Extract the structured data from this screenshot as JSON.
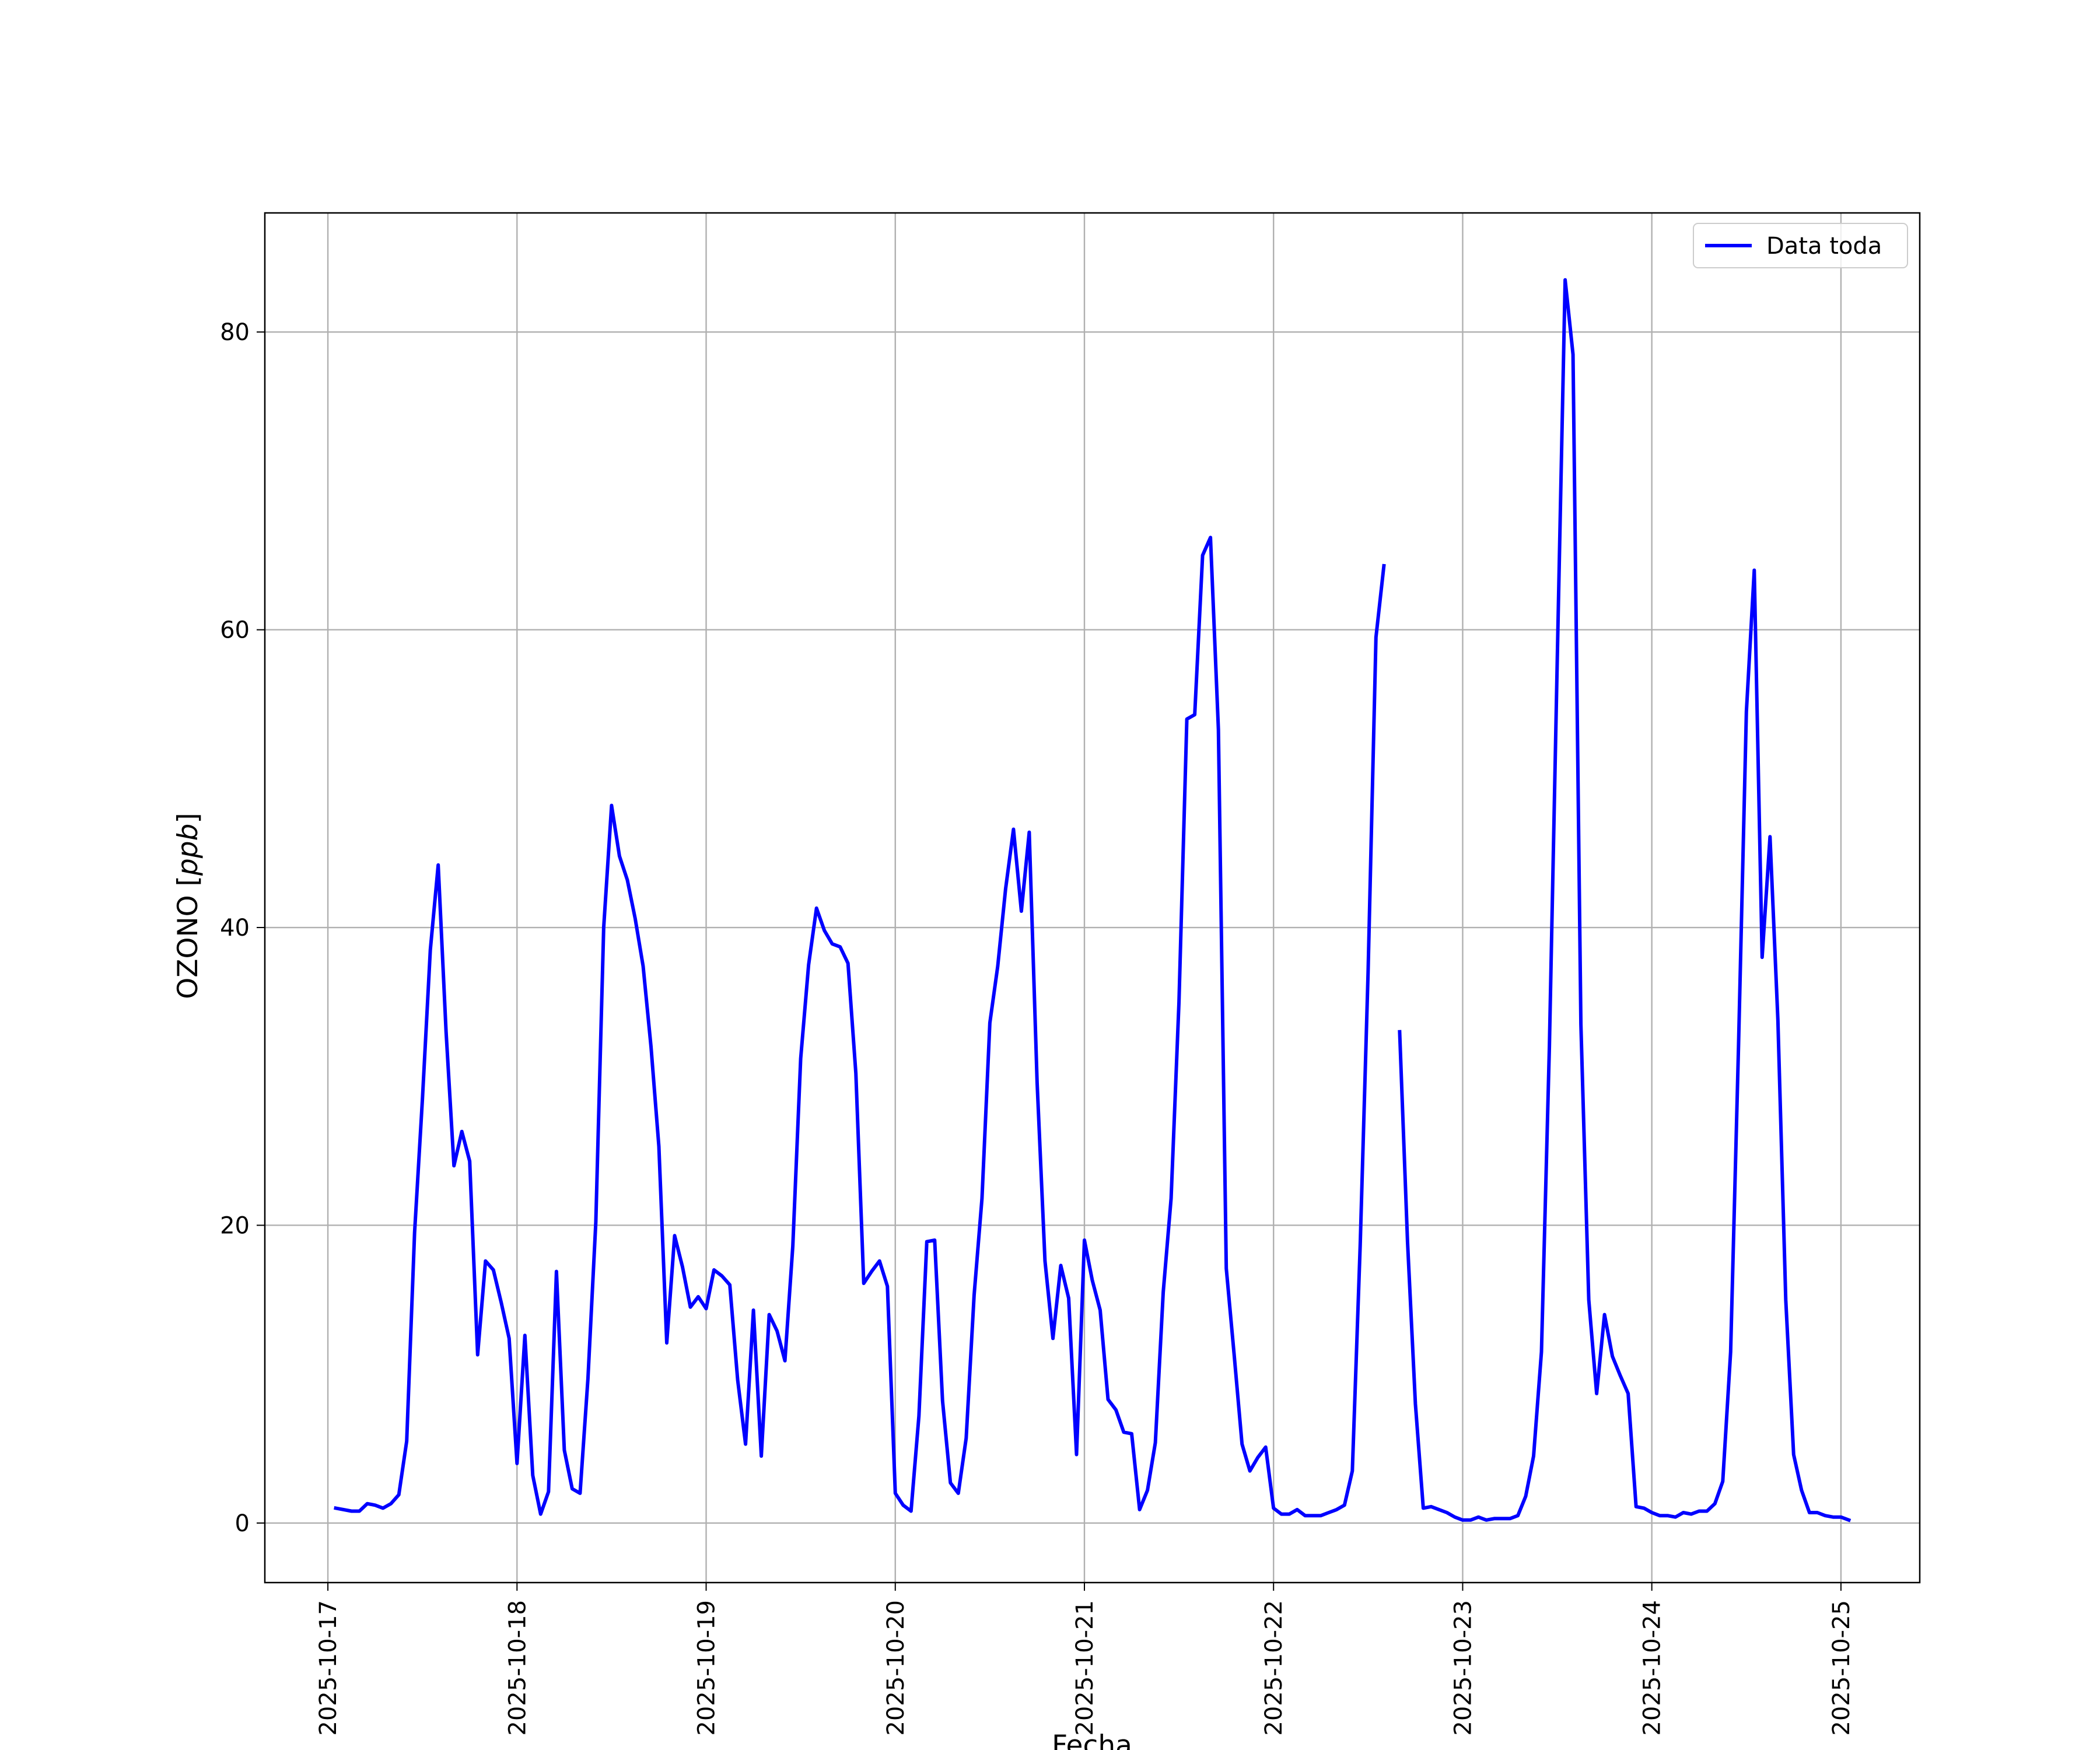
{
  "chart_data": {
    "type": "line",
    "xlabel": "Fecha",
    "ylabel_main": "OZONO [",
    "ylabel_unit": "ppb",
    "ylabel_close": "]",
    "x_tick_labels": [
      "2025-10-17",
      "2025-10-18",
      "2025-10-19",
      "2025-10-20",
      "2025-10-21",
      "2025-10-22",
      "2025-10-23",
      "2025-10-24",
      "2025-10-25"
    ],
    "y_ticks": [
      0,
      20,
      40,
      60,
      80
    ],
    "xlim": [
      "2025-10-16T16:00",
      "2025-10-25T10:00"
    ],
    "ylim": [
      -4,
      88
    ],
    "grid": true,
    "legend_position": "top-right",
    "series": [
      {
        "name": "Data toda",
        "color": "#0000ff",
        "segments": [
          [
            [
              "2025-10-17T01:00",
              1.0
            ],
            [
              "2025-10-17T03:00",
              0.8
            ],
            [
              "2025-10-17T04:00",
              0.8
            ],
            [
              "2025-10-17T05:00",
              1.3
            ],
            [
              "2025-10-17T06:00",
              1.2
            ],
            [
              "2025-10-17T07:00",
              1.0
            ],
            [
              "2025-10-17T08:00",
              1.3
            ],
            [
              "2025-10-17T09:00",
              1.9
            ],
            [
              "2025-10-17T10:00",
              5.5
            ],
            [
              "2025-10-17T11:00",
              19.5
            ],
            [
              "2025-10-17T12:00",
              28.5
            ],
            [
              "2025-10-17T13:00",
              38.5
            ],
            [
              "2025-10-17T14:00",
              44.2
            ],
            [
              "2025-10-17T15:00",
              33.0
            ],
            [
              "2025-10-17T16:00",
              24.0
            ],
            [
              "2025-10-17T17:00",
              26.3
            ],
            [
              "2025-10-17T18:00",
              24.3
            ],
            [
              "2025-10-17T19:00",
              11.3
            ],
            [
              "2025-10-17T20:00",
              17.6
            ],
            [
              "2025-10-17T21:00",
              17.0
            ],
            [
              "2025-10-17T22:00",
              14.8
            ],
            [
              "2025-10-17T23:00",
              12.4
            ],
            [
              "2025-10-18T00:00",
              4.0
            ],
            [
              "2025-10-18T01:00",
              12.6
            ],
            [
              "2025-10-18T02:00",
              3.2
            ],
            [
              "2025-10-18T03:00",
              0.6
            ],
            [
              "2025-10-18T04:00",
              2.1
            ],
            [
              "2025-10-18T05:00",
              16.9
            ],
            [
              "2025-10-18T06:00",
              4.9
            ],
            [
              "2025-10-18T07:00",
              2.3
            ],
            [
              "2025-10-18T08:00",
              2.0
            ],
            [
              "2025-10-18T09:00",
              9.7
            ],
            [
              "2025-10-18T10:00",
              20.2
            ],
            [
              "2025-10-18T11:00",
              40.0
            ],
            [
              "2025-10-18T12:00",
              48.2
            ],
            [
              "2025-10-18T13:00",
              44.8
            ],
            [
              "2025-10-18T14:00",
              43.2
            ],
            [
              "2025-10-18T15:00",
              40.6
            ],
            [
              "2025-10-18T16:00",
              37.4
            ],
            [
              "2025-10-18T17:00",
              32.0
            ],
            [
              "2025-10-18T18:00",
              25.3
            ],
            [
              "2025-10-18T19:00",
              12.1
            ],
            [
              "2025-10-18T20:00",
              19.3
            ],
            [
              "2025-10-18T21:00",
              17.2
            ],
            [
              "2025-10-18T22:00",
              14.5
            ],
            [
              "2025-10-18T23:00",
              15.2
            ],
            [
              "2025-10-19T00:00",
              14.4
            ],
            [
              "2025-10-19T01:00",
              17.0
            ],
            [
              "2025-10-19T02:00",
              16.6
            ],
            [
              "2025-10-19T03:00",
              16.0
            ],
            [
              "2025-10-19T04:00",
              9.6
            ],
            [
              "2025-10-19T05:00",
              5.3
            ],
            [
              "2025-10-19T06:00",
              14.3
            ],
            [
              "2025-10-19T07:00",
              4.5
            ],
            [
              "2025-10-19T08:00",
              14.0
            ],
            [
              "2025-10-19T09:00",
              12.9
            ],
            [
              "2025-10-19T10:00",
              10.9
            ],
            [
              "2025-10-19T11:00",
              18.6
            ],
            [
              "2025-10-19T12:00",
              31.2
            ],
            [
              "2025-10-19T13:00",
              37.5
            ],
            [
              "2025-10-19T14:00",
              41.3
            ],
            [
              "2025-10-19T15:00",
              39.8
            ],
            [
              "2025-10-19T16:00",
              38.9
            ],
            [
              "2025-10-19T17:00",
              38.7
            ],
            [
              "2025-10-19T18:00",
              37.6
            ],
            [
              "2025-10-19T19:00",
              30.2
            ],
            [
              "2025-10-19T20:00",
              16.1
            ],
            [
              "2025-10-19T21:00",
              16.9
            ],
            [
              "2025-10-19T22:00",
              17.6
            ],
            [
              "2025-10-19T23:00",
              15.9
            ],
            [
              "2025-10-20T00:00",
              2.0
            ],
            [
              "2025-10-20T01:00",
              1.2
            ],
            [
              "2025-10-20T02:00",
              0.8
            ],
            [
              "2025-10-20T03:00",
              7.2
            ],
            [
              "2025-10-20T04:00",
              18.9
            ],
            [
              "2025-10-20T05:00",
              19.0
            ],
            [
              "2025-10-20T06:00",
              8.2
            ],
            [
              "2025-10-20T07:00",
              2.7
            ],
            [
              "2025-10-20T08:00",
              2.0
            ],
            [
              "2025-10-20T09:00",
              5.7
            ],
            [
              "2025-10-20T10:00",
              15.3
            ],
            [
              "2025-10-20T11:00",
              21.8
            ],
            [
              "2025-10-20T12:00",
              33.6
            ],
            [
              "2025-10-20T13:00",
              37.4
            ],
            [
              "2025-10-20T14:00",
              42.6
            ],
            [
              "2025-10-20T15:00",
              46.6
            ],
            [
              "2025-10-20T16:00",
              41.1
            ],
            [
              "2025-10-20T17:00",
              46.4
            ],
            [
              "2025-10-20T18:00",
              29.6
            ],
            [
              "2025-10-20T19:00",
              17.6
            ],
            [
              "2025-10-20T20:00",
              12.4
            ],
            [
              "2025-10-20T21:00",
              17.3
            ],
            [
              "2025-10-20T22:00",
              15.1
            ],
            [
              "2025-10-20T23:00",
              4.6
            ],
            [
              "2025-10-21T00:00",
              19.0
            ],
            [
              "2025-10-21T01:00",
              16.3
            ],
            [
              "2025-10-21T02:00",
              14.3
            ],
            [
              "2025-10-21T03:00",
              8.3
            ],
            [
              "2025-10-21T04:00",
              7.6
            ],
            [
              "2025-10-21T05:00",
              6.1
            ],
            [
              "2025-10-21T06:00",
              6.0
            ],
            [
              "2025-10-21T07:00",
              0.9
            ],
            [
              "2025-10-21T08:00",
              2.2
            ],
            [
              "2025-10-21T09:00",
              5.4
            ],
            [
              "2025-10-21T10:00",
              15.5
            ],
            [
              "2025-10-21T11:00",
              21.8
            ],
            [
              "2025-10-21T12:00",
              35.0
            ],
            [
              "2025-10-21T13:00",
              54.0
            ],
            [
              "2025-10-21T14:00",
              54.3
            ],
            [
              "2025-10-21T15:00",
              65.0
            ],
            [
              "2025-10-21T16:00",
              66.2
            ],
            [
              "2025-10-21T17:00",
              53.3
            ],
            [
              "2025-10-21T18:00",
              17.1
            ],
            [
              "2025-10-21T19:00",
              11.3
            ],
            [
              "2025-10-21T20:00",
              5.3
            ],
            [
              "2025-10-21T21:00",
              3.5
            ],
            [
              "2025-10-21T22:00",
              4.4
            ],
            [
              "2025-10-21T23:00",
              5.1
            ],
            [
              "2025-10-22T00:00",
              1.0
            ],
            [
              "2025-10-22T01:00",
              0.6
            ],
            [
              "2025-10-22T02:00",
              0.6
            ],
            [
              "2025-10-22T03:00",
              0.9
            ],
            [
              "2025-10-22T04:00",
              0.5
            ],
            [
              "2025-10-22T05:00",
              0.5
            ],
            [
              "2025-10-22T06:00",
              0.5
            ],
            [
              "2025-10-22T07:00",
              0.7
            ],
            [
              "2025-10-22T08:00",
              0.9
            ],
            [
              "2025-10-22T09:00",
              1.2
            ],
            [
              "2025-10-22T10:00",
              3.5
            ],
            [
              "2025-10-22T11:00",
              18.7
            ],
            [
              "2025-10-22T12:00",
              37.0
            ],
            [
              "2025-10-22T13:00",
              59.5
            ],
            [
              "2025-10-22T14:00",
              64.3
            ]
          ],
          [
            [
              "2025-10-22T16:00",
              33.0
            ],
            [
              "2025-10-22T17:00",
              18.9
            ],
            [
              "2025-10-22T18:00",
              8.0
            ],
            [
              "2025-10-22T19:00",
              1.0
            ],
            [
              "2025-10-22T20:00",
              1.1
            ],
            [
              "2025-10-22T21:00",
              0.9
            ],
            [
              "2025-10-22T22:00",
              0.7
            ],
            [
              "2025-10-22T23:00",
              0.4
            ],
            [
              "2025-10-23T00:00",
              0.2
            ],
            [
              "2025-10-23T01:00",
              0.2
            ],
            [
              "2025-10-23T02:00",
              0.4
            ],
            [
              "2025-10-23T03:00",
              0.2
            ],
            [
              "2025-10-23T04:00",
              0.3
            ],
            [
              "2025-10-23T05:00",
              0.3
            ],
            [
              "2025-10-23T06:00",
              0.3
            ],
            [
              "2025-10-23T07:00",
              0.5
            ],
            [
              "2025-10-23T08:00",
              1.8
            ],
            [
              "2025-10-23T09:00",
              4.5
            ],
            [
              "2025-10-23T10:00",
              11.5
            ],
            [
              "2025-10-23T11:00",
              32.0
            ],
            [
              "2025-10-23T12:00",
              58.0
            ],
            [
              "2025-10-23T13:00",
              83.5
            ],
            [
              "2025-10-23T14:00",
              78.5
            ],
            [
              "2025-10-23T15:00",
              33.5
            ],
            [
              "2025-10-23T16:00",
              15.0
            ],
            [
              "2025-10-23T17:00",
              8.7
            ],
            [
              "2025-10-23T18:00",
              14.0
            ],
            [
              "2025-10-23T19:00",
              11.2
            ],
            [
              "2025-10-23T20:00",
              9.9
            ],
            [
              "2025-10-23T21:00",
              8.7
            ],
            [
              "2025-10-23T22:00",
              1.1
            ],
            [
              "2025-10-23T23:00",
              1.0
            ],
            [
              "2025-10-24T00:00",
              0.7
            ],
            [
              "2025-10-24T01:00",
              0.5
            ],
            [
              "2025-10-24T02:00",
              0.5
            ],
            [
              "2025-10-24T03:00",
              0.4
            ],
            [
              "2025-10-24T04:00",
              0.7
            ],
            [
              "2025-10-24T05:00",
              0.6
            ],
            [
              "2025-10-24T06:00",
              0.8
            ],
            [
              "2025-10-24T07:00",
              0.8
            ],
            [
              "2025-10-24T08:00",
              1.3
            ],
            [
              "2025-10-24T09:00",
              2.8
            ],
            [
              "2025-10-24T10:00",
              11.5
            ],
            [
              "2025-10-24T11:00",
              32.0
            ],
            [
              "2025-10-24T12:00",
              54.5
            ],
            [
              "2025-10-24T13:00",
              64.0
            ],
            [
              "2025-10-24T14:00",
              38.0
            ],
            [
              "2025-10-24T15:00",
              46.1
            ],
            [
              "2025-10-24T16:00",
              33.8
            ],
            [
              "2025-10-24T17:00",
              15.0
            ],
            [
              "2025-10-24T18:00",
              4.6
            ],
            [
              "2025-10-24T19:00",
              2.2
            ],
            [
              "2025-10-24T20:00",
              0.7
            ],
            [
              "2025-10-24T21:00",
              0.7
            ],
            [
              "2025-10-24T22:00",
              0.5
            ],
            [
              "2025-10-24T23:00",
              0.4
            ],
            [
              "2025-10-25T00:00",
              0.4
            ],
            [
              "2025-10-25T01:00",
              0.2
            ]
          ]
        ]
      }
    ]
  }
}
